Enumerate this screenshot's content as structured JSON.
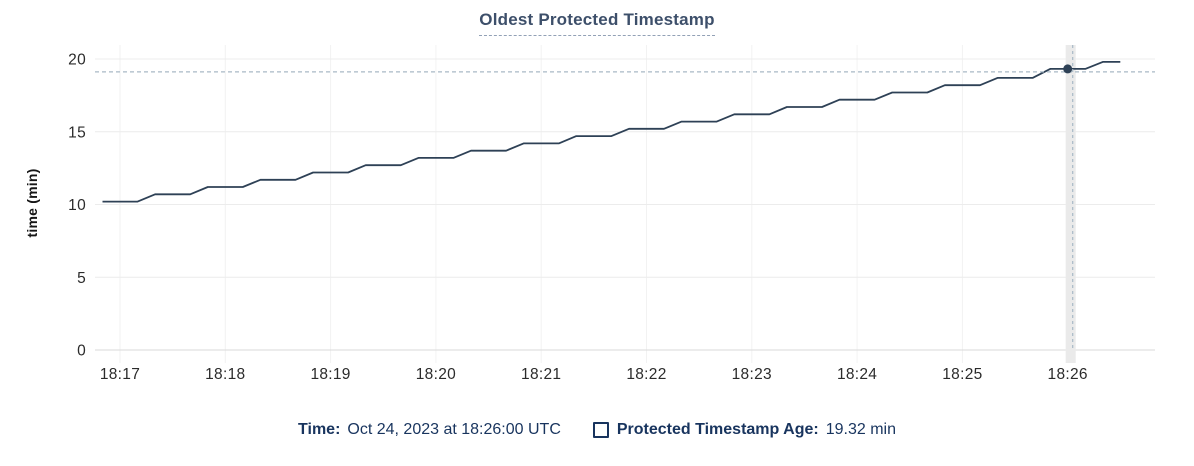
{
  "chart_data": {
    "type": "line",
    "title": "Oldest Protected Timestamp",
    "ylabel": "time (min)",
    "xlabel": "",
    "x_tick_labels": [
      "18:17",
      "18:18",
      "18:19",
      "18:20",
      "18:21",
      "18:22",
      "18:23",
      "18:24",
      "18:25",
      "18:26"
    ],
    "y_tick_labels": [
      0,
      5,
      10,
      15,
      20
    ],
    "ylim": [
      0,
      20
    ],
    "grid": true,
    "legend_position": "bottom",
    "series": [
      {
        "name": "Protected Timestamp Age",
        "color": "#2e4156",
        "points": [
          [
            "18:16:50",
            10.2
          ],
          [
            "18:17:00",
            10.2
          ],
          [
            "18:17:10",
            10.2
          ],
          [
            "18:17:20",
            10.7
          ],
          [
            "18:17:30",
            10.7
          ],
          [
            "18:17:40",
            10.7
          ],
          [
            "18:17:50",
            11.2
          ],
          [
            "18:18:00",
            11.2
          ],
          [
            "18:18:10",
            11.2
          ],
          [
            "18:18:20",
            11.7
          ],
          [
            "18:18:30",
            11.7
          ],
          [
            "18:18:40",
            11.7
          ],
          [
            "18:18:50",
            12.2
          ],
          [
            "18:19:00",
            12.2
          ],
          [
            "18:19:10",
            12.2
          ],
          [
            "18:19:20",
            12.7
          ],
          [
            "18:19:30",
            12.7
          ],
          [
            "18:19:40",
            12.7
          ],
          [
            "18:19:50",
            13.2
          ],
          [
            "18:20:00",
            13.2
          ],
          [
            "18:20:10",
            13.2
          ],
          [
            "18:20:20",
            13.7
          ],
          [
            "18:20:30",
            13.7
          ],
          [
            "18:20:40",
            13.7
          ],
          [
            "18:20:50",
            14.2
          ],
          [
            "18:21:00",
            14.2
          ],
          [
            "18:21:10",
            14.2
          ],
          [
            "18:21:20",
            14.7
          ],
          [
            "18:21:30",
            14.7
          ],
          [
            "18:21:40",
            14.7
          ],
          [
            "18:21:50",
            15.2
          ],
          [
            "18:22:00",
            15.2
          ],
          [
            "18:22:10",
            15.2
          ],
          [
            "18:22:20",
            15.7
          ],
          [
            "18:22:30",
            15.7
          ],
          [
            "18:22:40",
            15.7
          ],
          [
            "18:22:50",
            16.2
          ],
          [
            "18:23:00",
            16.2
          ],
          [
            "18:23:10",
            16.2
          ],
          [
            "18:23:20",
            16.7
          ],
          [
            "18:23:30",
            16.7
          ],
          [
            "18:23:40",
            16.7
          ],
          [
            "18:23:50",
            17.2
          ],
          [
            "18:24:00",
            17.2
          ],
          [
            "18:24:10",
            17.2
          ],
          [
            "18:24:20",
            17.7
          ],
          [
            "18:24:30",
            17.7
          ],
          [
            "18:24:40",
            17.7
          ],
          [
            "18:24:50",
            18.2
          ],
          [
            "18:25:00",
            18.2
          ],
          [
            "18:25:10",
            18.2
          ],
          [
            "18:25:20",
            18.7
          ],
          [
            "18:25:30",
            18.7
          ],
          [
            "18:25:40",
            18.7
          ],
          [
            "18:25:50",
            19.32
          ],
          [
            "18:26:00",
            19.32
          ],
          [
            "18:26:10",
            19.32
          ],
          [
            "18:26:20",
            19.8
          ],
          [
            "18:26:30",
            19.8
          ]
        ]
      }
    ],
    "cursor": {
      "time": "18:26:00",
      "value": 19.32
    }
  },
  "legend": {
    "time_label": "Time:",
    "time_value": "Oct 24, 2023 at 18:26:00 UTC",
    "series_label": "Protected Timestamp Age:",
    "series_value": "19.32 min"
  },
  "colors": {
    "title_text": "#3d4f6a",
    "title_underline": "#92a1b6",
    "legend_text": "#18345e",
    "series_line": "#2e4156",
    "cursor_crosshair": "#a9b9c6",
    "cursor_band": "#eaeaea",
    "gridline_h": "#ececec",
    "gridline_v": "#f2f2f2",
    "axis_zero_line": "#dadada",
    "axis_tick_text": "#2b2b2b"
  }
}
